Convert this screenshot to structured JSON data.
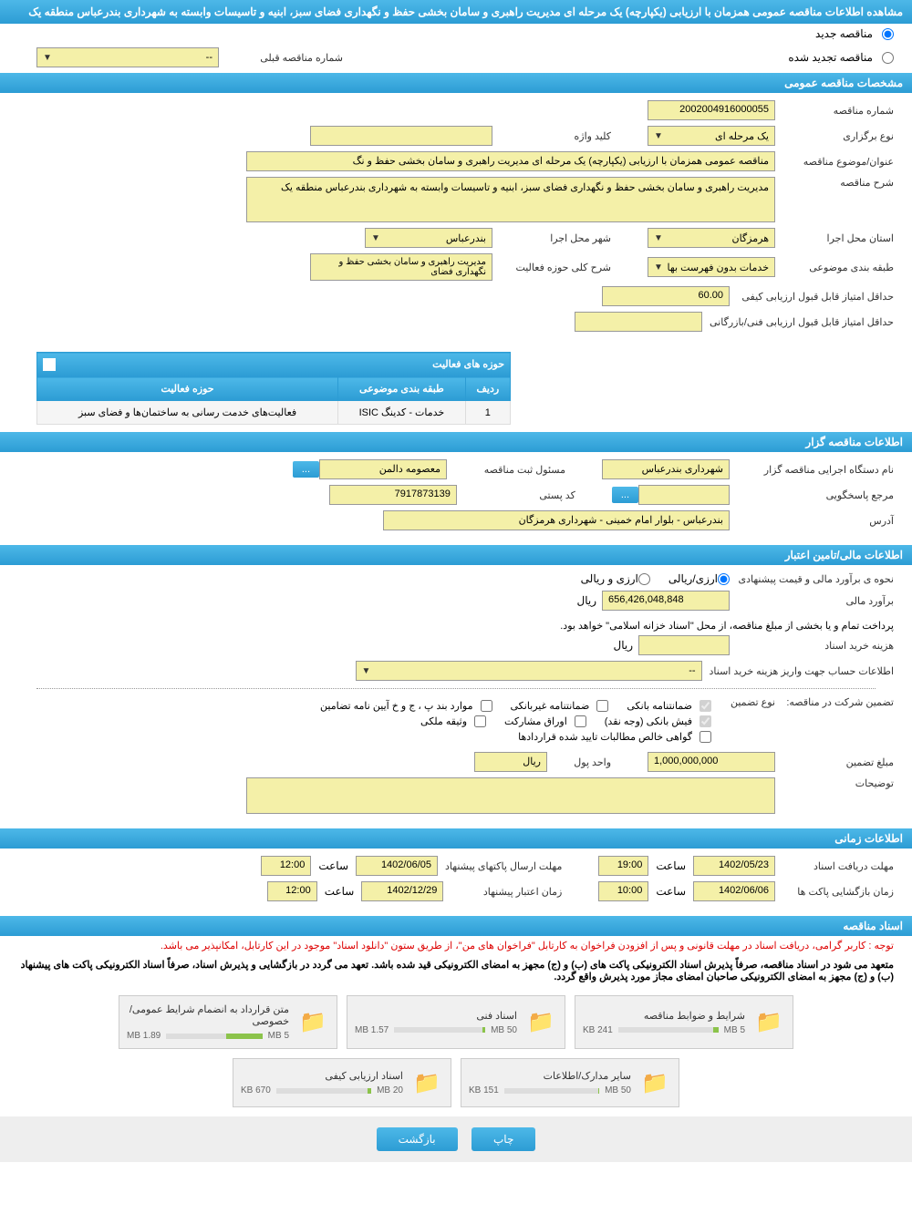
{
  "header": {
    "title": "مشاهده اطلاعات مناقصه عمومی همزمان با ارزیابی (یکپارچه) یک مرحله ای مدیریت راهبری و سامان بخشی حفظ و نگهداری فضای سبز، ابنیه و تاسیسات وابسته به شهرداری بندرعباس منطقه یک"
  },
  "radios": {
    "new_label": "مناقصه جدید",
    "renewed_label": "مناقصه تجدید شده",
    "prev_number_label": "شماره مناقصه قبلی",
    "prev_number_value": "--"
  },
  "sections": {
    "general": "مشخصات مناقصه عمومی",
    "organizer": "اطلاعات مناقصه گزار",
    "financial": "اطلاعات مالی/تامین اعتبار",
    "timing": "اطلاعات زمانی",
    "documents": "اسناد مناقصه"
  },
  "general": {
    "number_label": "شماره مناقصه",
    "number_value": "2002004916000055",
    "type_label": "نوع برگزاری",
    "type_value": "یک مرحله ای",
    "keyword_label": "کلید واژه",
    "keyword_value": "",
    "title_label": "عنوان/موضوع مناقصه",
    "title_value": "مناقصه عمومی همزمان با ارزیابی (یکپارچه) یک مرحله ای مدیریت راهبری و سامان بخشی حفظ و نگ",
    "desc_label": "شرح مناقصه",
    "desc_value": "مدیریت راهبری و سامان بخشی حفظ و نگهداری فضای سبز، ابنیه و تاسیسات وابسته به شهرداری بندرعباس منطقه یک",
    "province_label": "استان محل اجرا",
    "province_value": "هرمزگان",
    "city_label": "شهر محل اجرا",
    "city_value": "بندرعباس",
    "category_label": "طبقه بندی موضوعی",
    "category_value": "خدمات بدون فهرست بها",
    "activity_label": "شرح کلی حوزه فعالیت",
    "activity_value": "مدیریت راهبری و سامان بخشی حفظ و نگهداری فضای",
    "min_quality_label": "حداقل امتیاز قابل قبول ارزیابی کیفی",
    "min_quality_value": "60.00",
    "min_tech_label": "حداقل امتیاز قابل قبول ارزیابی فنی/بازرگانی",
    "min_tech_value": ""
  },
  "activity_table": {
    "title": "حوزه های فعالیت",
    "col_row": "ردیف",
    "col_category": "طبقه بندی موضوعی",
    "col_domain": "حوزه فعالیت",
    "rows": [
      {
        "n": "1",
        "cat": "خدمات - کدینگ ISIC",
        "domain": "فعالیت‌های خدمت رسانی به ساختمان‌ها و فضای سبز"
      }
    ]
  },
  "organizer": {
    "org_label": "نام دستگاه اجرایی مناقصه گزار",
    "org_value": "شهرداری بندرعباس",
    "reg_label": "مسئول ثبت مناقصه",
    "reg_value": "معصومه دالمن",
    "more_btn": "...",
    "ref_label": "مرجع پاسخگویی",
    "ref_value": "",
    "postal_label": "کد پستی",
    "postal_value": "7917873139",
    "address_label": "آدرس",
    "address_value": "بندرعباس - بلوار امام خمینی - شهرداری هرمزگان"
  },
  "financial": {
    "method_label": "نحوه ی برآورد مالی و قیمت پیشنهادی",
    "method_opt1": "ارزی/ریالی",
    "method_opt2": "ارزی و ریالی",
    "estimate_label": "برآورد مالی",
    "estimate_value": "656,426,048,848",
    "currency": "ریال",
    "payment_note": "پرداخت تمام و یا بخشی از مبلغ مناقصه، از محل \"اسناد خزانه اسلامی\" خواهد بود.",
    "doc_cost_label": "هزینه خرید اسناد",
    "doc_cost_value": "",
    "account_label": "اطلاعات حساب جهت واریز هزینه خرید اسناد",
    "account_value": "--",
    "guarantee_label": "تضمین شرکت در مناقصه:",
    "guarantee_type_label": "نوع تضمین",
    "guarantee_opts": {
      "bank": "ضمانتنامه بانکی",
      "nonbank": "ضمانتنامه غیربانکی",
      "bylaw": "موارد بند پ ، ج و خ آیین نامه تضامین",
      "cash": "فیش بانکی (وجه نقد)",
      "bonds": "اوراق مشارکت",
      "property": "وثیقه ملکی",
      "receivables": "گواهی خالص مطالبات تایید شده قراردادها"
    },
    "guarantee_amount_label": "مبلغ تضمین",
    "guarantee_amount_value": "1,000,000,000",
    "unit_label": "واحد پول",
    "unit_value": "ریال",
    "notes_label": "توضیحات",
    "notes_value": ""
  },
  "timing": {
    "receive_label": "مهلت دریافت اسناد",
    "receive_date": "1402/05/23",
    "receive_time_label": "ساعت",
    "receive_time": "19:00",
    "send_label": "مهلت ارسال پاکتهای پیشنهاد",
    "send_date": "1402/06/05",
    "send_time_label": "ساعت",
    "send_time": "12:00",
    "open_label": "زمان بازگشایی پاکت ها",
    "open_date": "1402/06/06",
    "open_time_label": "ساعت",
    "open_time": "10:00",
    "validity_label": "زمان اعتبار پیشنهاد",
    "validity_date": "1402/12/29",
    "validity_time_label": "ساعت",
    "validity_time": "12:00"
  },
  "documents": {
    "note1": "توجه : کاربر گرامی، دریافت اسناد در مهلت قانونی و پس از افزودن فراخوان به کارتابل \"فراخوان های من\"، از طریق ستون \"دانلود اسناد\" موجود در این کارتابل، امکانپذیر می باشد.",
    "note2": "متعهد می شود در اسناد مناقصه، صرفاً پذیرش اسناد الکترونیکی پاکت های (ب) و (ج) مجهز به امضای الکترونیکی قید شده باشد. تعهد می گردد در بازگشایی و پذیرش اسناد، صرفاً اسناد الکترونیکی پاکت های پیشنهاد (ب) و (ج) مجهز به امضای الکترونیکی صاحبان امضای مجاز مورد پذیرش واقع گردد.",
    "files": [
      {
        "title": "شرایط و ضوابط مناقصه",
        "size": "241 KB",
        "max": "5 MB",
        "pct": 5
      },
      {
        "title": "اسناد فنی",
        "size": "1.57 MB",
        "max": "50 MB",
        "pct": 3
      },
      {
        "title": "متن قرارداد به انضمام شرایط عمومی/خصوصی",
        "size": "1.89 MB",
        "max": "5 MB",
        "pct": 38
      },
      {
        "title": "سایر مدارک/اطلاعات",
        "size": "151 KB",
        "max": "50 MB",
        "pct": 1
      },
      {
        "title": "اسناد ارزیابی کیفی",
        "size": "670 KB",
        "max": "20 MB",
        "pct": 4
      }
    ]
  },
  "footer": {
    "print": "چاپ",
    "back": "بازگشت"
  },
  "colors": {
    "header_grad_top": "#4db8e8",
    "header_grad_bot": "#2c9cd4",
    "field_bg": "#f4f0a8",
    "progress_fill": "#8bc34a"
  }
}
